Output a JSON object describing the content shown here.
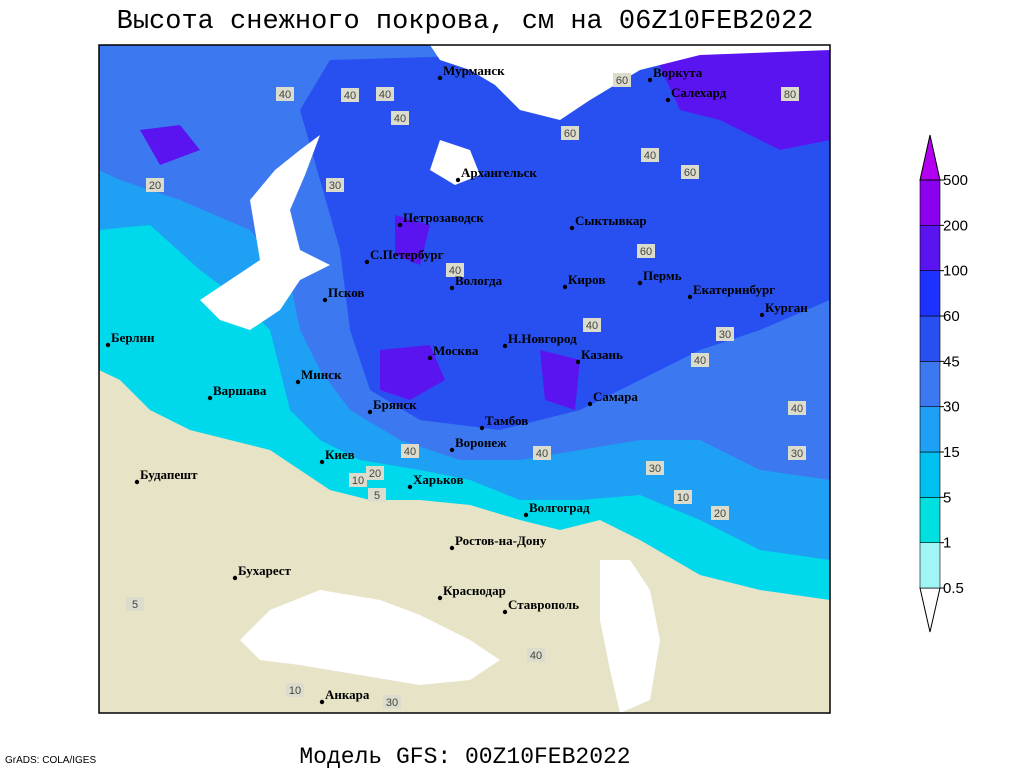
{
  "title": "Высота снежного покрова, см на 06Z10FEB2022",
  "footer": "Модель GFS: 00Z10FEB2022",
  "credit": "GrADS: COLA/IGES",
  "cities": [
    "Мурманск",
    "Архангельск",
    "Петрозаводск",
    "Сыктывкар",
    "Воркута",
    "Салехард",
    "С.Петербург",
    "Вологда",
    "Киров",
    "Пермь",
    "Екатеринбург",
    "Псков",
    "Курган",
    "Берлин",
    "Н.Новгород",
    "Москва",
    "Казань",
    "Минск",
    "Варшава",
    "Самара",
    "Брянск",
    "Тамбов",
    "Киев",
    "Воронеж",
    "Будапешт",
    "Харьков",
    "Волгоград",
    "Ростов-на-Дону",
    "Бухарест",
    "Краснодар",
    "Ставрополь",
    "Анкара"
  ],
  "contour_labels": [
    40,
    40,
    40,
    40,
    60,
    80,
    40,
    60,
    20,
    30,
    40,
    40,
    30,
    40,
    40,
    30,
    40,
    40,
    30,
    20,
    10,
    5,
    20,
    10,
    5,
    10,
    30,
    40,
    60,
    60
  ],
  "legend": {
    "levels": [
      0.5,
      1,
      5,
      15,
      30,
      45,
      60,
      100,
      200,
      500
    ],
    "colors": [
      "#ffffff",
      "#a0f5f5",
      "#00e0e0",
      "#00c0f0",
      "#1ea0f5",
      "#3c78f0",
      "#2850f0",
      "#1e32ff",
      "#5a14f0",
      "#8c00f0",
      "#b400f0"
    ]
  }
}
